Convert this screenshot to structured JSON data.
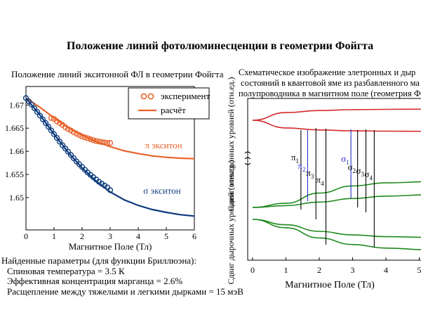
{
  "slide": {
    "title": "Положение линий фотолюминесценции в геометрии Фойгта"
  },
  "left_panel": {
    "title": "Положение линий экситонной ФЛ в геометрии Фойгта",
    "params": {
      "heading": "Найденные параметры (для функции Бриллюэна):",
      "lines": [
        "Спиновая температура = 3.5 К",
        "Эффективная концентрация марганца = 2.6%",
        "Расщепление между тяжелыми и легкими дырками = 15 мэВ"
      ]
    }
  },
  "right_panel": {
    "title": "Схематическое изображение элетронных и дыр\n состояний в квантовой яме из разбавленного ма\nполупроводника в магнитном поле (геометрия Ф"
  },
  "chart_data": [
    {
      "type": "scatter",
      "xlabel": "Магнитное Поле (Тл)",
      "ylabel": "",
      "xlim": [
        0,
        6
      ],
      "ylim": [
        1.643,
        1.674
      ],
      "x_ticks": [
        0,
        1,
        2,
        3,
        4,
        5,
        6
      ],
      "y_ticks": [
        1.65,
        1.655,
        1.66,
        1.665,
        1.67
      ],
      "y_tick_labels": [
        "1.65",
        "1.655",
        "1.66",
        "1.665",
        "1.67"
      ],
      "legend": {
        "placement": "top-right",
        "entries": [
          {
            "label": "эксперимент",
            "kind": "marker"
          },
          {
            "label": "расчёт",
            "kind": "line"
          }
        ]
      },
      "annotations": [
        {
          "text": "π экситон",
          "x": 4.9,
          "y": 1.6606
        },
        {
          "text": "σ экситон",
          "x": 4.85,
          "y": 1.6508
        }
      ],
      "series": [
        {
          "name": "π экситон",
          "color": "#e8632b",
          "points_x": [
            0.9,
            1.0,
            1.1,
            1.2,
            1.3,
            1.4,
            1.5,
            1.6,
            1.7,
            1.8,
            1.9,
            2.0,
            2.1,
            2.2,
            2.3,
            2.4,
            2.5,
            2.6,
            2.7,
            2.8,
            2.9,
            3.0
          ],
          "points_y": [
            1.6672,
            1.667,
            1.6665,
            1.6661,
            1.6657,
            1.6652,
            1.6648,
            1.6645,
            1.6641,
            1.6638,
            1.6635,
            1.6632,
            1.663,
            1.6628,
            1.6626,
            1.6624,
            1.6622,
            1.6621,
            1.662,
            1.6619,
            1.6618,
            1.6618
          ],
          "fit_x": [
            0,
            0.5,
            1,
            1.5,
            2,
            2.5,
            3,
            3.5,
            4,
            4.5,
            5,
            5.5,
            6
          ],
          "fit_y": [
            1.6715,
            1.6695,
            1.6672,
            1.6652,
            1.6635,
            1.6621,
            1.661,
            1.6601,
            1.6595,
            1.659,
            1.6587,
            1.6585,
            1.6584
          ]
        },
        {
          "name": "σ экситон",
          "color": "#0e3b7c",
          "points_x": [
            0,
            0.1,
            0.2,
            0.3,
            0.4,
            0.5,
            0.6,
            0.7,
            0.8,
            0.9,
            1.0,
            1.1,
            1.2,
            1.3,
            1.4,
            1.5,
            1.6,
            1.7,
            1.8,
            1.9,
            2.0,
            2.1,
            2.2,
            2.3,
            2.4,
            2.5,
            2.6,
            2.7,
            2.8,
            2.9,
            3.0
          ],
          "points_y": [
            1.6715,
            1.6708,
            1.6701,
            1.6693,
            1.6685,
            1.6677,
            1.6669,
            1.6661,
            1.6653,
            1.6645,
            1.6637,
            1.6629,
            1.6621,
            1.6613,
            1.6606,
            1.6599,
            1.6592,
            1.6585,
            1.6578,
            1.6572,
            1.6566,
            1.656,
            1.6554,
            1.6549,
            1.6544,
            1.6539,
            1.6534,
            1.653,
            1.6526,
            1.6522,
            1.6516
          ],
          "fit_x": [
            0,
            0.5,
            1,
            1.5,
            2,
            2.5,
            3,
            3.5,
            4,
            4.5,
            5,
            5.5,
            6
          ],
          "fit_y": [
            1.6715,
            1.6678,
            1.6637,
            1.6598,
            1.6564,
            1.6535,
            1.6512,
            1.6495,
            1.6483,
            1.6474,
            1.6468,
            1.6463,
            1.646
          ]
        }
      ]
    },
    {
      "type": "line",
      "xlabel": "Магнитное Поле (Тл)",
      "xlim": [
        0,
        5
      ],
      "x_ticks": [
        0,
        1,
        2,
        3,
        4,
        5
      ],
      "ylabel_top": "Сдвиг электронных уровней (отн.ед.)",
      "ylabel_bottom": "Сдвиг дырочных уровней (отн.ед.)",
      "annotations": [
        {
          "text": "π1",
          "x": 1.45,
          "color": "#000000"
        },
        {
          "text": "π2",
          "x": 1.65,
          "color": "#1f2fbf"
        },
        {
          "text": "π3",
          "x": 1.9,
          "color": "#000000"
        },
        {
          "text": "π4",
          "x": 2.2,
          "color": "#000000"
        },
        {
          "text": "σ1",
          "x": 2.95,
          "color": "#1f2fbf"
        },
        {
          "text": "σ2",
          "x": 3.15,
          "color": "#000000"
        },
        {
          "text": "σ3",
          "x": 3.4,
          "color": "#000000"
        },
        {
          "text": "σ4",
          "x": 3.65,
          "color": "#000000"
        }
      ],
      "series": [
        {
          "group": "electron",
          "color": "#d42a2a",
          "x": [
            0,
            1,
            2,
            3,
            4,
            5.3
          ],
          "y": [
            0,
            0.68,
            0.86,
            0.94,
            0.97,
            0.99
          ]
        },
        {
          "group": "electron",
          "color": "#d42a2a",
          "x": [
            0,
            1,
            2,
            3,
            4,
            5.3
          ],
          "y": [
            0,
            -0.68,
            -0.86,
            -0.94,
            -0.97,
            -0.99
          ]
        },
        {
          "group": "hole",
          "color": "#1f8a1f",
          "x": [
            0,
            1,
            2,
            3,
            4,
            5.3
          ],
          "y": [
            1,
            1.35,
            2.2,
            2.8,
            3.05,
            3.15
          ]
        },
        {
          "group": "hole",
          "color": "#1f8a1f",
          "x": [
            0,
            1,
            2,
            3,
            4,
            5.3
          ],
          "y": [
            1,
            1.15,
            1.45,
            1.75,
            1.95,
            2.05
          ]
        },
        {
          "group": "hole",
          "color": "#1f8a1f",
          "x": [
            0,
            1,
            2,
            3,
            4,
            5.3
          ],
          "y": [
            0,
            -0.45,
            -1.0,
            -1.3,
            -1.45,
            -1.5
          ]
        },
        {
          "group": "hole",
          "color": "#1f8a1f",
          "x": [
            0,
            1,
            2,
            3,
            4,
            5.3
          ],
          "y": [
            0,
            -0.7,
            -1.55,
            -2.1,
            -2.4,
            -2.55
          ]
        }
      ],
      "transitions": [
        {
          "x": 1.45,
          "color": "#000000"
        },
        {
          "x": 1.65,
          "color": "#1f2fbf"
        },
        {
          "x": 1.9,
          "color": "#000000"
        },
        {
          "x": 2.2,
          "color": "#000000"
        },
        {
          "x": 2.95,
          "color": "#1f2fbf"
        },
        {
          "x": 3.15,
          "color": "#000000"
        },
        {
          "x": 3.4,
          "color": "#000000"
        },
        {
          "x": 3.65,
          "color": "#000000"
        }
      ]
    }
  ]
}
